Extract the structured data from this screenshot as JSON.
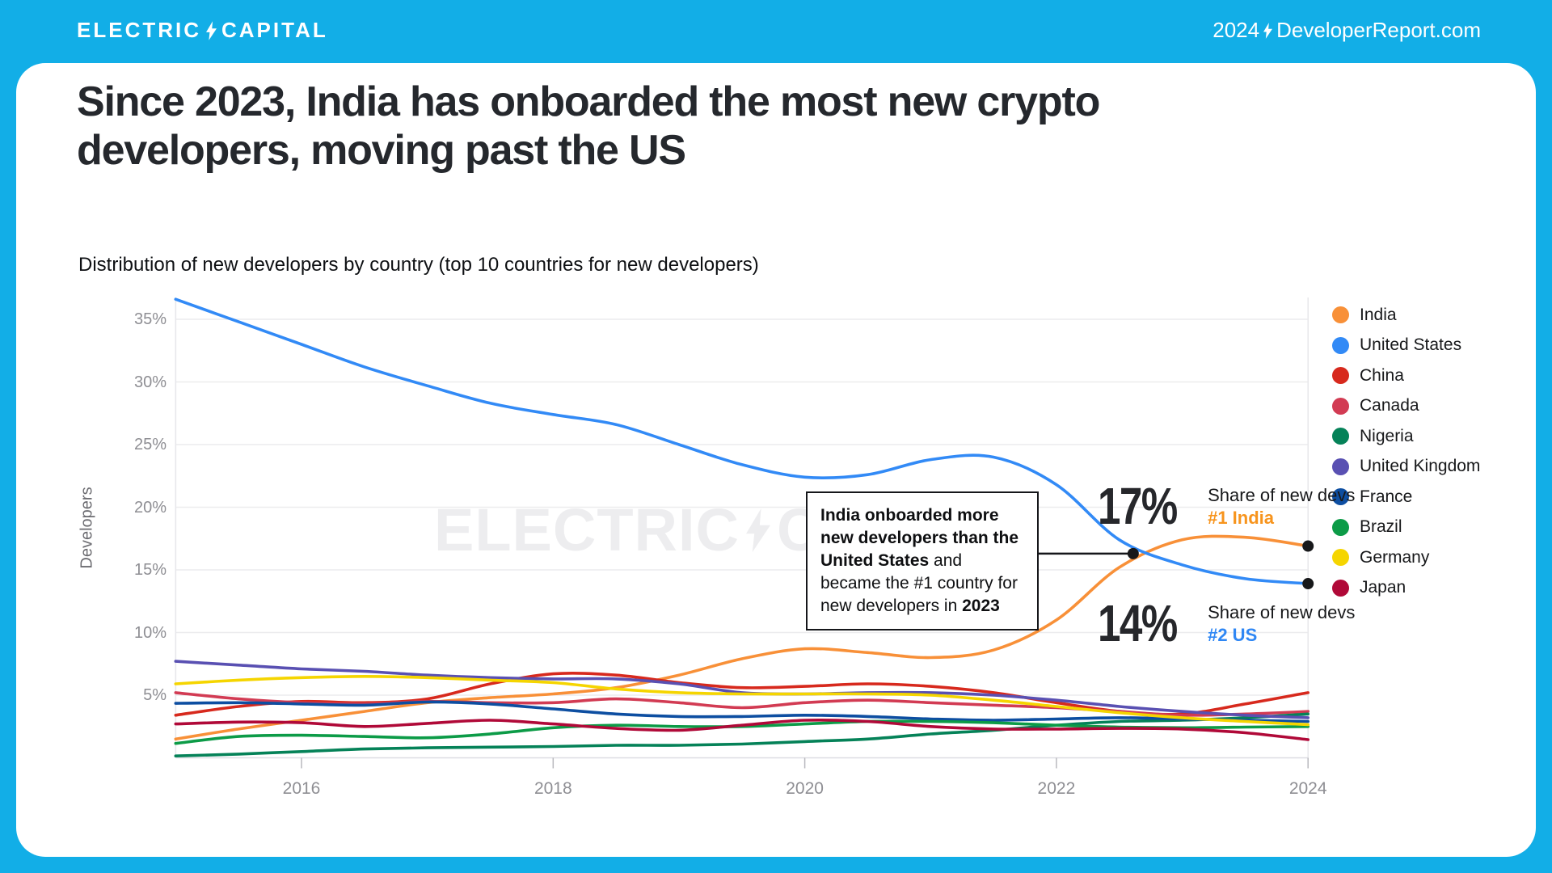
{
  "header": {
    "logo_word1": "ELECTRIC",
    "logo_word2": "CAPITAL",
    "ref_year": "2024",
    "ref_site": "DeveloperReport.com"
  },
  "title": "Since 2023, India has onboarded the most new crypto developers, moving past the US",
  "subtitle": "Distribution of new developers by country (top 10 countries for new developers)",
  "watermark": {
    "word1": "ELECTRIC",
    "word2": "CAPITAL"
  },
  "annotation": {
    "parts": [
      {
        "text": "India onboarded more new developers than the United States",
        "bold": true
      },
      {
        "text": " and became the #1 country for new developers in ",
        "bold": false
      },
      {
        "text": "2023",
        "bold": true
      }
    ]
  },
  "callouts": [
    {
      "value": "17%",
      "label": "Share of new devs",
      "rank": "#1 India",
      "color": "#F7941D"
    },
    {
      "value": "14%",
      "label": "Share of new devs",
      "rank": "#2 US",
      "color": "#2F87F4"
    }
  ],
  "chart_data": {
    "type": "line",
    "title": "Distribution of new developers by country (top 10 countries for new developers)",
    "xlabel": "",
    "ylabel": "Developers",
    "xlim": [
      2015,
      2024
    ],
    "ylim": [
      0,
      37.5
    ],
    "grid": true,
    "legend_position": "right",
    "x_ticks": [
      2016,
      2018,
      2020,
      2022,
      2024
    ],
    "x_tick_labels": [
      "2016",
      "2018",
      "2020",
      "2022",
      "2024"
    ],
    "y_ticks": [
      5,
      10,
      15,
      20,
      25,
      30,
      35
    ],
    "y_tick_labels": [
      "5%",
      "10%",
      "15%",
      "20%",
      "25%",
      "30%",
      "35%"
    ],
    "x": [
      2015,
      2015.5,
      2016,
      2016.5,
      2017,
      2017.5,
      2018,
      2018.5,
      2019,
      2019.5,
      2020,
      2020.5,
      2021,
      2021.5,
      2022,
      2022.5,
      2023,
      2023.5,
      2024
    ],
    "series": [
      {
        "name": "India",
        "color": "#F89038",
        "values": [
          1.5,
          2.3,
          3.0,
          3.7,
          4.4,
          4.8,
          5.1,
          5.6,
          6.6,
          7.9,
          8.7,
          8.4,
          8.0,
          8.6,
          11.0,
          15.2,
          17.4,
          17.6,
          16.9
        ]
      },
      {
        "name": "United States",
        "color": "#328AF6",
        "values": [
          36.6,
          34.8,
          33.0,
          31.2,
          29.7,
          28.3,
          27.4,
          26.6,
          25.0,
          23.4,
          22.4,
          22.6,
          23.8,
          24.0,
          21.8,
          17.4,
          15.4,
          14.3,
          13.9
        ]
      },
      {
        "name": "China",
        "color": "#D7291D",
        "values": [
          3.4,
          4.1,
          4.5,
          4.4,
          4.7,
          5.9,
          6.7,
          6.6,
          6.0,
          5.6,
          5.7,
          5.9,
          5.7,
          5.2,
          4.4,
          3.7,
          3.5,
          4.3,
          5.2
        ]
      },
      {
        "name": "Canada",
        "color": "#D23B53",
        "values": [
          5.2,
          4.7,
          4.4,
          4.3,
          4.5,
          4.4,
          4.4,
          4.7,
          4.4,
          4.0,
          4.4,
          4.6,
          4.4,
          4.2,
          4.0,
          3.7,
          3.4,
          3.5,
          3.7
        ]
      },
      {
        "name": "Nigeria",
        "color": "#058258",
        "values": [
          0.15,
          0.3,
          0.5,
          0.7,
          0.8,
          0.85,
          0.9,
          1.0,
          1.0,
          1.1,
          1.3,
          1.5,
          1.9,
          2.2,
          2.6,
          2.9,
          3.0,
          3.2,
          3.5
        ]
      },
      {
        "name": "United Kingdom",
        "color": "#5950B2",
        "values": [
          7.7,
          7.4,
          7.1,
          6.9,
          6.6,
          6.4,
          6.3,
          6.3,
          5.9,
          5.2,
          5.1,
          5.2,
          5.2,
          5.0,
          4.6,
          4.1,
          3.7,
          3.4,
          3.2
        ]
      },
      {
        "name": "France",
        "color": "#0D4EA1",
        "values": [
          4.35,
          4.4,
          4.3,
          4.2,
          4.45,
          4.3,
          3.9,
          3.5,
          3.3,
          3.3,
          3.4,
          3.3,
          3.1,
          3.0,
          3.1,
          3.2,
          3.1,
          3.0,
          2.9
        ]
      },
      {
        "name": "Brazil",
        "color": "#0C9B47",
        "values": [
          1.15,
          1.7,
          1.8,
          1.7,
          1.6,
          1.9,
          2.4,
          2.6,
          2.5,
          2.5,
          2.7,
          2.9,
          2.9,
          2.8,
          2.6,
          2.45,
          2.4,
          2.45,
          2.5
        ]
      },
      {
        "name": "Germany",
        "color": "#F5D500",
        "values": [
          5.9,
          6.2,
          6.4,
          6.5,
          6.4,
          6.2,
          6.0,
          5.5,
          5.2,
          5.1,
          5.1,
          5.1,
          5.0,
          4.6,
          4.1,
          3.6,
          3.2,
          2.9,
          2.65
        ]
      },
      {
        "name": "Japan",
        "color": "#B00938",
        "values": [
          2.7,
          2.85,
          2.8,
          2.5,
          2.75,
          3.0,
          2.7,
          2.35,
          2.2,
          2.6,
          3.0,
          2.9,
          2.5,
          2.3,
          2.3,
          2.35,
          2.3,
          2.0,
          1.45
        ]
      }
    ],
    "markers": [
      {
        "year": 2022.61,
        "value": 16.3,
        "note": "India passes US crossing point"
      },
      {
        "year": 2024,
        "value": 16.9,
        "note": "India 2024 endpoint"
      },
      {
        "year": 2024,
        "value": 13.9,
        "note": "US 2024 endpoint"
      }
    ],
    "colors": {
      "grid": "#ECECEE",
      "baseline": "#DEDEE2",
      "plot_border": "#E7E7EA",
      "tick": "#B9B9BE",
      "marker_dot": "#17181a",
      "connector": "#15161a"
    }
  }
}
